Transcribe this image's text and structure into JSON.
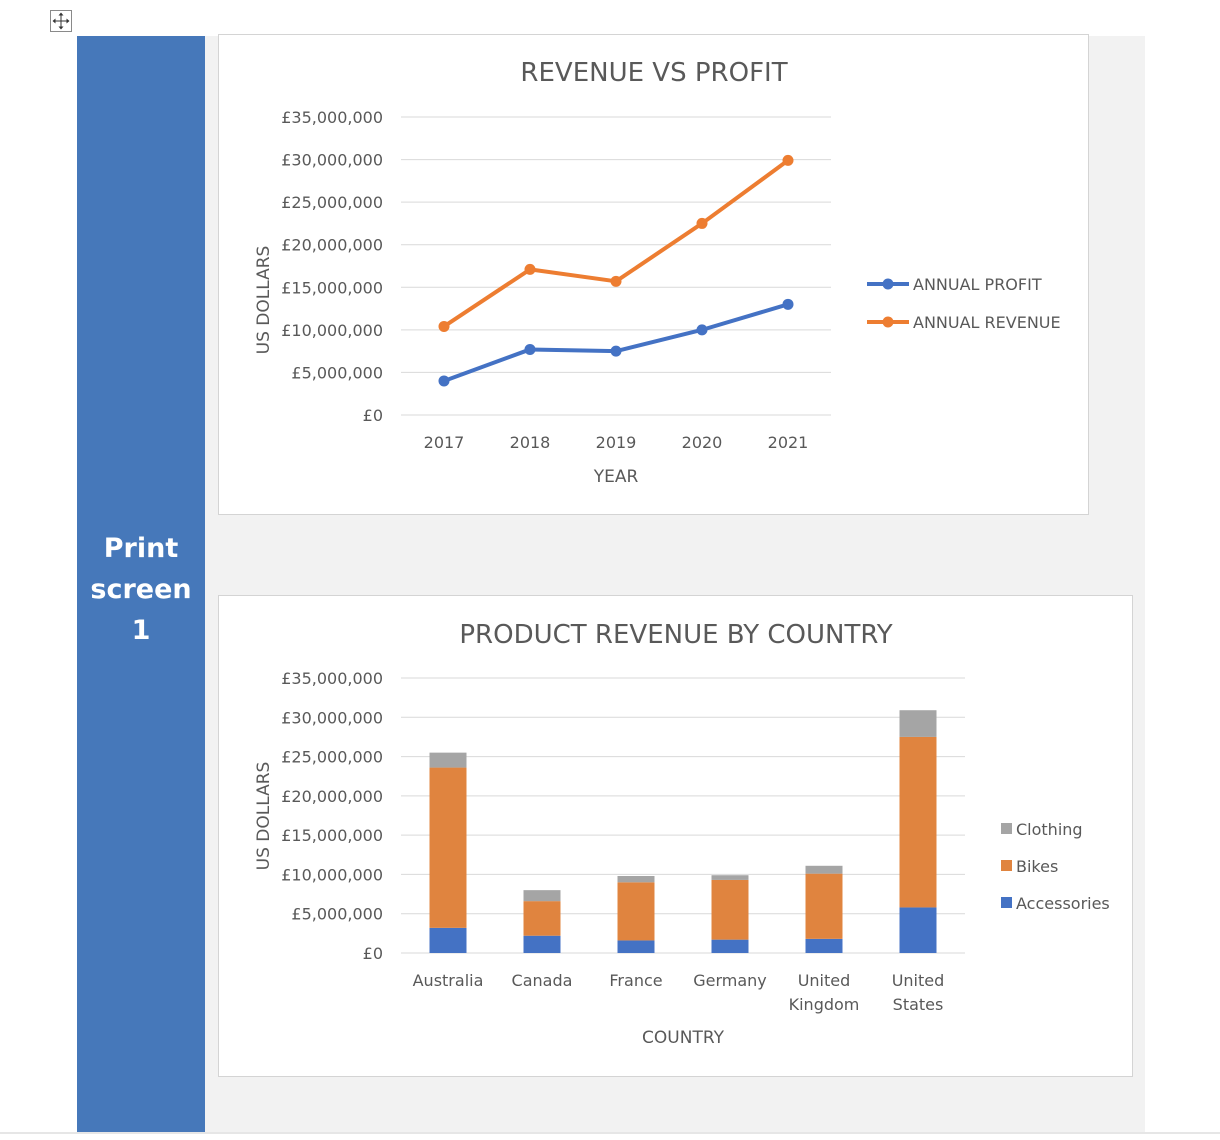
{
  "page": {
    "side_label_lines": [
      "Print",
      "screen",
      "1"
    ]
  },
  "icons": {
    "move_handle": "move-cross-icon"
  },
  "colors": {
    "side_panel": "#4678ba",
    "profit": "#4472c4",
    "revenue": "#ed7d31",
    "bikes": "#e0843f",
    "accessories": "#4472c4",
    "clothing": "#a5a5a5",
    "grid": "#d9d9d9",
    "text": "#595959"
  },
  "chart_data": [
    {
      "type": "line",
      "title": "REVENUE VS PROFIT",
      "xlabel": "YEAR",
      "ylabel": "US DOLLARS",
      "x": [
        "2017",
        "2018",
        "2019",
        "2020",
        "2021"
      ],
      "ylim": [
        0,
        35000000
      ],
      "ytick_labels": [
        "£0",
        "£5,000,000",
        "£10,000,000",
        "£15,000,000",
        "£20,000,000",
        "£25,000,000",
        "£30,000,000",
        "£35,000,000"
      ],
      "grid": true,
      "legend": "right",
      "series": [
        {
          "name": "ANNUAL PROFIT",
          "values": [
            4000000,
            7700000,
            7500000,
            10000000,
            13000000
          ]
        },
        {
          "name": "ANNUAL REVENUE",
          "values": [
            10400000,
            17100000,
            15700000,
            22500000,
            29900000
          ]
        }
      ]
    },
    {
      "type": "bar",
      "stacked": true,
      "title": "PRODUCT REVENUE BY COUNTRY",
      "xlabel": "COUNTRY",
      "ylabel": "US DOLLARS",
      "categories": [
        "Australia",
        "Canada",
        "France",
        "Germany",
        "United Kingdom",
        "United States"
      ],
      "category_label_lines": [
        [
          "Australia"
        ],
        [
          "Canada"
        ],
        [
          "France"
        ],
        [
          "Germany"
        ],
        [
          "United",
          "Kingdom"
        ],
        [
          "United",
          "States"
        ]
      ],
      "ylim": [
        0,
        35000000
      ],
      "ytick_labels": [
        "£0",
        "£5,000,000",
        "£10,000,000",
        "£15,000,000",
        "£20,000,000",
        "£25,000,000",
        "£30,000,000",
        "£35,000,000"
      ],
      "grid": true,
      "legend": "right",
      "series": [
        {
          "name": "Accessories",
          "values": [
            3200000,
            2200000,
            1600000,
            1700000,
            1800000,
            5800000
          ]
        },
        {
          "name": "Bikes",
          "values": [
            20400000,
            4400000,
            7400000,
            7600000,
            8300000,
            21700000
          ]
        },
        {
          "name": "Clothing",
          "values": [
            1900000,
            1400000,
            800000,
            600000,
            1000000,
            3400000
          ]
        }
      ],
      "legend_order": [
        "Clothing",
        "Bikes",
        "Accessories"
      ]
    }
  ]
}
